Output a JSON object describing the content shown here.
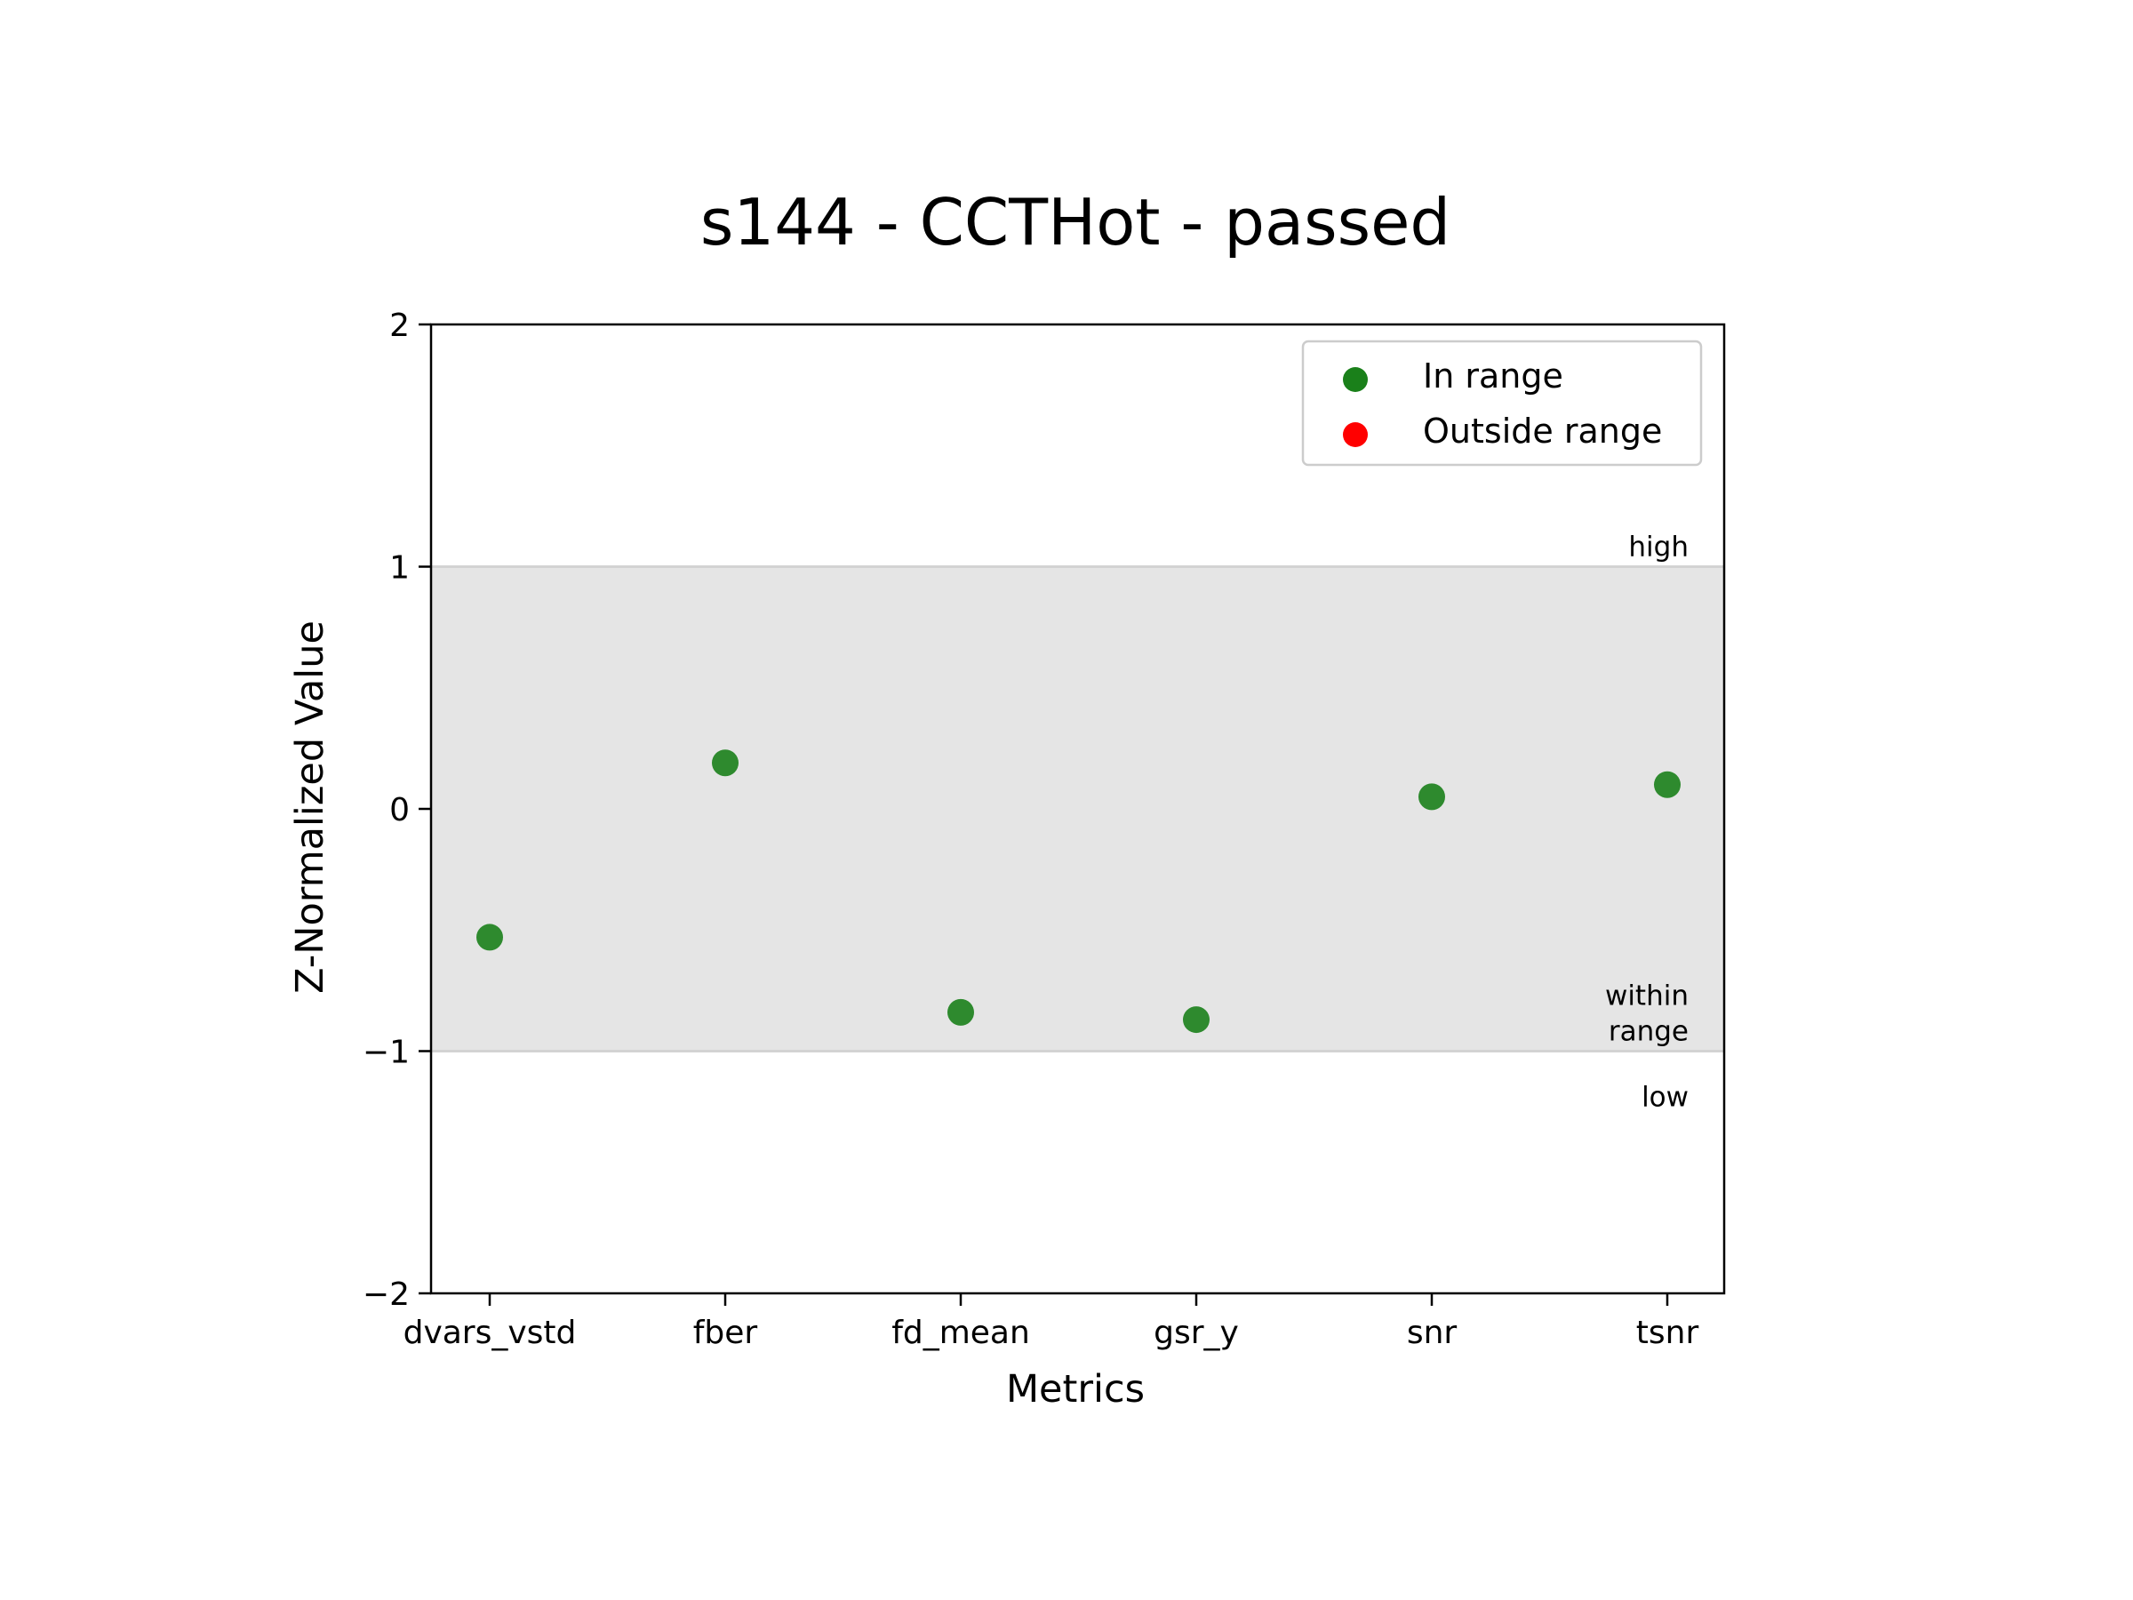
{
  "chart_data": {
    "type": "scatter",
    "title": "s144 - CCTHot - passed",
    "xlabel": "Metrics",
    "ylabel": "Z-Normalized Value",
    "categories": [
      "dvars_vstd",
      "fber",
      "fd_mean",
      "gsr_y",
      "snr",
      "tsnr"
    ],
    "series": [
      {
        "name": "In range",
        "color": "#1a801a",
        "points": [
          {
            "x": "dvars_vstd",
            "y": -0.53
          },
          {
            "x": "fber",
            "y": 0.19
          },
          {
            "x": "fd_mean",
            "y": -0.84
          },
          {
            "x": "gsr_y",
            "y": -0.87
          },
          {
            "x": "snr",
            "y": 0.05
          },
          {
            "x": "tsnr",
            "y": 0.1
          }
        ]
      },
      {
        "name": "Outside range",
        "color": "#ff0000",
        "points": []
      }
    ],
    "ylim": [
      -2,
      2
    ],
    "yticks": [
      {
        "value": 2,
        "label": "2"
      },
      {
        "value": 1,
        "label": "1"
      },
      {
        "value": 0,
        "label": "0"
      },
      {
        "value": -1,
        "label": "−1"
      },
      {
        "value": -2,
        "label": "−2"
      }
    ],
    "shaded_band": {
      "from": -1,
      "to": 1,
      "color": "#e5e5e5",
      "line_color": "#d3d3d3"
    },
    "band_labels": [
      {
        "lines": [
          "high"
        ],
        "anchor_y": 1,
        "position": "above"
      },
      {
        "lines": [
          "within",
          "range"
        ],
        "anchor_y": -1,
        "position": "above"
      },
      {
        "lines": [
          "low"
        ],
        "anchor_y": -1,
        "position": "below"
      }
    ],
    "legend": {
      "placement": "top-right",
      "entries": [
        "In range",
        "Outside range"
      ]
    },
    "grid": false
  }
}
